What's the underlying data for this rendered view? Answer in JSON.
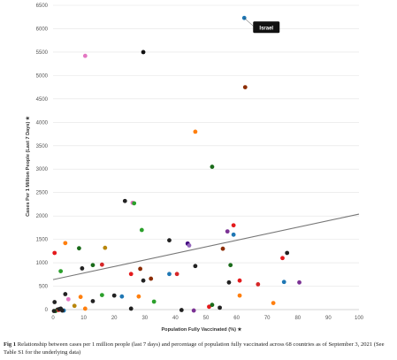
{
  "chart_data": {
    "type": "scatter",
    "xlabel": "Population Fully Vaccinated (%) ★",
    "ylabel": "Cases Per 1 Million People (Last 7 Days) ★",
    "xlim": [
      0,
      100
    ],
    "ylim": [
      0,
      6500
    ],
    "xticks": [
      0,
      10,
      20,
      30,
      40,
      50,
      60,
      70,
      80,
      90,
      100
    ],
    "yticks": [
      0,
      500,
      1000,
      1500,
      2000,
      2500,
      3000,
      3500,
      4000,
      4500,
      5000,
      5500,
      6000,
      6500
    ],
    "grid": "horizontal",
    "points": [
      {
        "x": 62.5,
        "y": 6230,
        "color": "#1f77b4"
      },
      {
        "x": 29.5,
        "y": 5500,
        "color": "#111111"
      },
      {
        "x": 10.5,
        "y": 5420,
        "color": "#e377c2"
      },
      {
        "x": 62.8,
        "y": 4750,
        "color": "#8c2d04"
      },
      {
        "x": 46.5,
        "y": 3800,
        "color": "#ff7f0e"
      },
      {
        "x": 52.0,
        "y": 3050,
        "color": "#1a6b1a"
      },
      {
        "x": 23.5,
        "y": 2320,
        "color": "#222222"
      },
      {
        "x": 26.0,
        "y": 2280,
        "color": "#e377c2"
      },
      {
        "x": 26.5,
        "y": 2270,
        "color": "#2ca02c"
      },
      {
        "x": 29.0,
        "y": 1700,
        "color": "#2ca02c"
      },
      {
        "x": 59.0,
        "y": 1800,
        "color": "#e41a1c"
      },
      {
        "x": 57.0,
        "y": 1670,
        "color": "#7b3294"
      },
      {
        "x": 59.0,
        "y": 1600,
        "color": "#1f77b4"
      },
      {
        "x": 38.0,
        "y": 1480,
        "color": "#222222"
      },
      {
        "x": 44.0,
        "y": 1410,
        "color": "#3f007d"
      },
      {
        "x": 44.5,
        "y": 1370,
        "color": "#9467bd"
      },
      {
        "x": 4.0,
        "y": 1420,
        "color": "#ff7f0e"
      },
      {
        "x": 8.5,
        "y": 1310,
        "color": "#1a6b1a"
      },
      {
        "x": 17.0,
        "y": 1320,
        "color": "#b8860b"
      },
      {
        "x": 0.5,
        "y": 1210,
        "color": "#e41a1c"
      },
      {
        "x": 55.5,
        "y": 1300,
        "color": "#8c2d04"
      },
      {
        "x": 76.5,
        "y": 1210,
        "color": "#222222"
      },
      {
        "x": 75.0,
        "y": 1100,
        "color": "#e41a1c"
      },
      {
        "x": 16.0,
        "y": 960,
        "color": "#d62728"
      },
      {
        "x": 13.0,
        "y": 950,
        "color": "#1a6b1a"
      },
      {
        "x": 9.5,
        "y": 880,
        "color": "#222222"
      },
      {
        "x": 2.5,
        "y": 820,
        "color": "#2ca02c"
      },
      {
        "x": 46.5,
        "y": 930,
        "color": "#222222"
      },
      {
        "x": 58.0,
        "y": 950,
        "color": "#1a6b1a"
      },
      {
        "x": 28.5,
        "y": 870,
        "color": "#8c2d04"
      },
      {
        "x": 25.5,
        "y": 760,
        "color": "#e41a1c"
      },
      {
        "x": 38.0,
        "y": 760,
        "color": "#1f77b4"
      },
      {
        "x": 40.5,
        "y": 760,
        "color": "#d62728"
      },
      {
        "x": 32.0,
        "y": 660,
        "color": "#8c2d04"
      },
      {
        "x": 29.5,
        "y": 620,
        "color": "#222222"
      },
      {
        "x": 61.0,
        "y": 620,
        "color": "#e41a1c"
      },
      {
        "x": 57.5,
        "y": 580,
        "color": "#222222"
      },
      {
        "x": 67.0,
        "y": 540,
        "color": "#d62728"
      },
      {
        "x": 75.5,
        "y": 590,
        "color": "#1f77b4"
      },
      {
        "x": 80.5,
        "y": 580,
        "color": "#7b3294"
      },
      {
        "x": 4.0,
        "y": 330,
        "color": "#222222"
      },
      {
        "x": 5.0,
        "y": 220,
        "color": "#e377c2"
      },
      {
        "x": 9.0,
        "y": 270,
        "color": "#ff7f0e"
      },
      {
        "x": 13.0,
        "y": 180,
        "color": "#222222"
      },
      {
        "x": 16.0,
        "y": 310,
        "color": "#2ca02c"
      },
      {
        "x": 20.0,
        "y": 300,
        "color": "#222222"
      },
      {
        "x": 22.5,
        "y": 280,
        "color": "#1f77b4"
      },
      {
        "x": 28.0,
        "y": 280,
        "color": "#ff7f0e"
      },
      {
        "x": 33.0,
        "y": 170,
        "color": "#2ca02c"
      },
      {
        "x": 61.0,
        "y": 300,
        "color": "#ff7f0e"
      },
      {
        "x": 72.0,
        "y": 140,
        "color": "#ff7f0e"
      },
      {
        "x": 0.5,
        "y": 160,
        "color": "#222222"
      },
      {
        "x": 7.0,
        "y": 80,
        "color": "#b8860b"
      },
      {
        "x": 10.5,
        "y": 20,
        "color": "#ff7f0e"
      },
      {
        "x": 25.5,
        "y": 20,
        "color": "#222222"
      },
      {
        "x": 51.0,
        "y": 60,
        "color": "#e41a1c"
      },
      {
        "x": 52.0,
        "y": 100,
        "color": "#1a6b1a"
      },
      {
        "x": 54.5,
        "y": 40,
        "color": "#222222"
      },
      {
        "x": 42.0,
        "y": -10,
        "color": "#222222"
      },
      {
        "x": 46.0,
        "y": -20,
        "color": "#7b3294"
      },
      {
        "x": 1.5,
        "y": 0,
        "color": "#222222"
      },
      {
        "x": 2.5,
        "y": 20,
        "color": "#222222"
      },
      {
        "x": 3.5,
        "y": -20,
        "color": "#1f77b4"
      },
      {
        "x": 0.8,
        "y": -30,
        "color": "#1a6b1a"
      },
      {
        "x": 3.0,
        "y": -20,
        "color": "#222222"
      },
      {
        "x": 1.8,
        "y": -10,
        "color": "#d62728"
      },
      {
        "x": 2.0,
        "y": 10,
        "color": "#222222"
      },
      {
        "x": 0.3,
        "y": -30,
        "color": "#222222"
      }
    ],
    "trendline": {
      "x": [
        0,
        100
      ],
      "y": [
        640,
        2040
      ],
      "color": "#777777"
    },
    "annotations": [
      {
        "text": "Israel",
        "x": 62.5,
        "y": 6230,
        "background": "#111111",
        "color": "#ffffff"
      }
    ]
  },
  "caption": {
    "label": "Fig 1",
    "text": "Relationship between cases per 1 million people (last 7 days) and percentage of population fully vaccinated across 68 countries as of September 3, 2021 (See Table S1 for the underlying data)"
  }
}
